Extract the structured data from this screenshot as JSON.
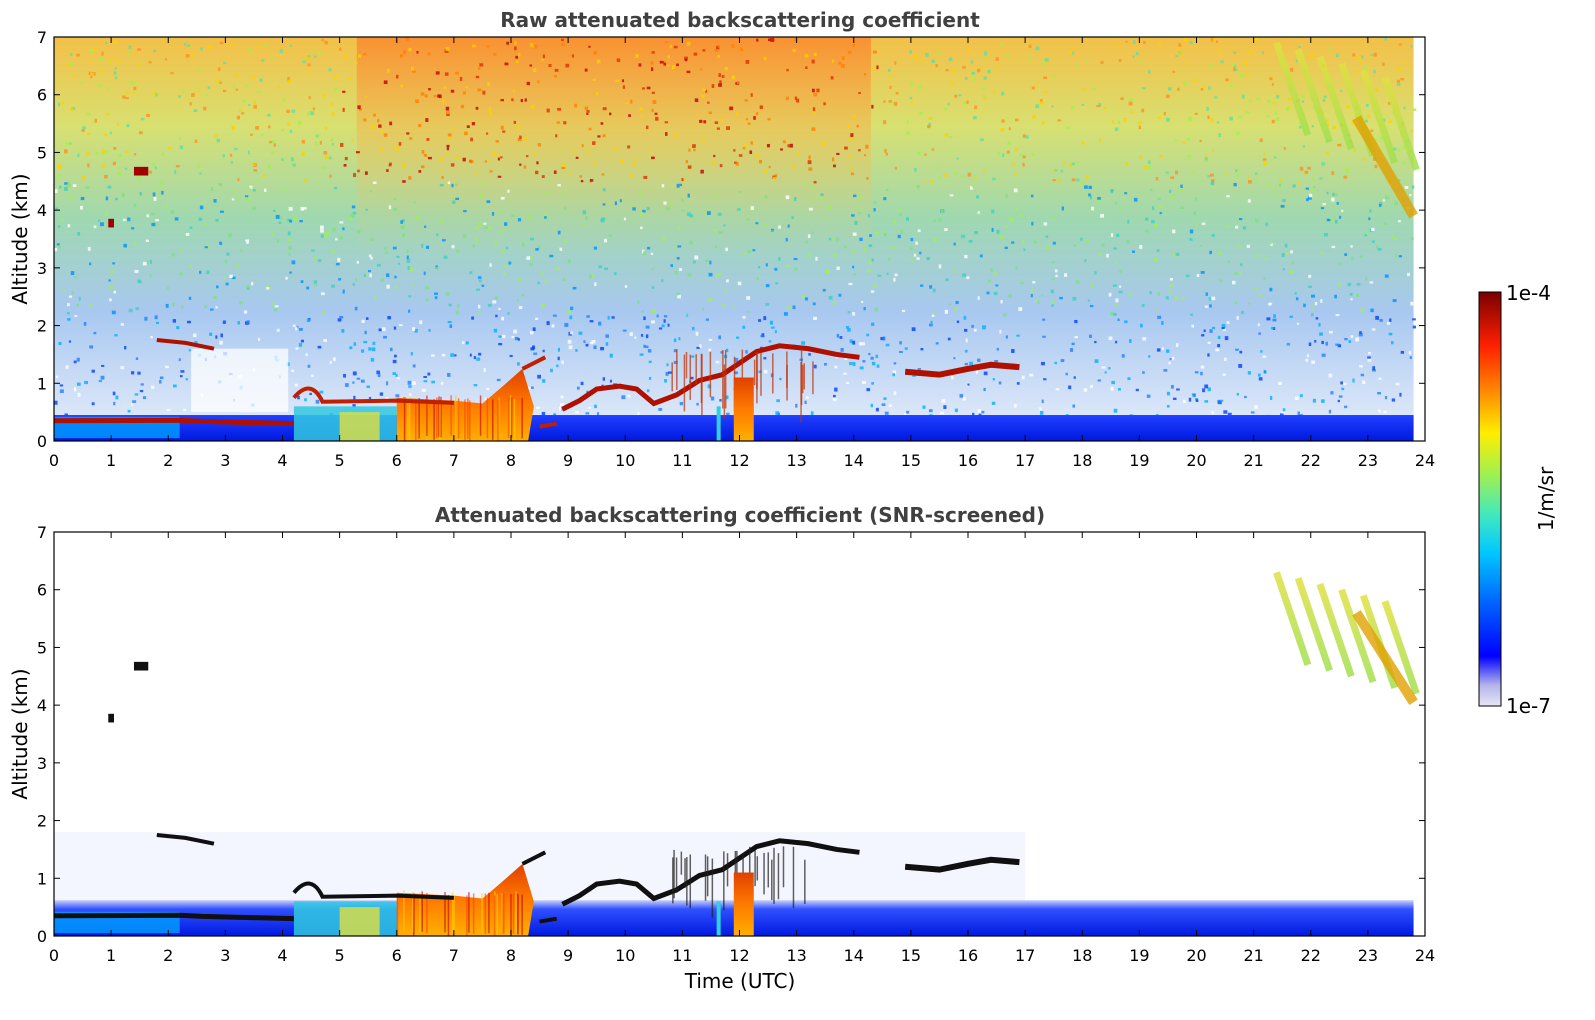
{
  "chart_data": [
    {
      "type": "heatmap",
      "title": "Raw attenuated backscattering coefficient",
      "xlabel": "",
      "ylabel": "Altitude (km)",
      "xlim": [
        0,
        24
      ],
      "ylim": [
        0,
        7
      ],
      "xticks": [
        "0",
        "1",
        "2",
        "3",
        "4",
        "5",
        "6",
        "7",
        "8",
        "9",
        "10",
        "11",
        "12",
        "13",
        "14",
        "15",
        "16",
        "17",
        "18",
        "19",
        "20",
        "21",
        "22",
        "23",
        "24"
      ],
      "yticks": [
        "0",
        "1",
        "2",
        "3",
        "4",
        "5",
        "6",
        "7"
      ],
      "data_extent_hours": [
        0,
        23.8
      ],
      "features": [
        {
          "name": "boundary layer",
          "x": [
            0,
            23.8
          ],
          "y": [
            0,
            0.45
          ]
        },
        {
          "name": "aerosol layer",
          "x": [
            2.2,
            4.2
          ],
          "y": [
            0.25,
            0.4
          ]
        },
        {
          "name": "cloud",
          "x": [
            4.2,
            8.6
          ],
          "y": [
            0,
            1.2
          ]
        },
        {
          "name": "cloud",
          "x": [
            8.8,
            14.2
          ],
          "y": [
            0.5,
            1.8
          ]
        },
        {
          "name": "cloud",
          "x": [
            14.8,
            17.0
          ],
          "y": [
            1.1,
            1.35
          ]
        },
        {
          "name": "cloud",
          "x": [
            1.0,
            1.7
          ],
          "y": [
            3.7,
            4.8
          ]
        },
        {
          "name": "cirrus",
          "x": [
            21.3,
            23.8
          ],
          "y": [
            3.8,
            7.0
          ]
        }
      ]
    },
    {
      "type": "heatmap",
      "title": "Attenuated backscattering coefficient (SNR-screened)",
      "xlabel": "Time (UTC)",
      "ylabel": "Altitude (km)",
      "xlim": [
        0,
        24
      ],
      "ylim": [
        0,
        7
      ],
      "xticks": [
        "0",
        "1",
        "2",
        "3",
        "4",
        "5",
        "6",
        "7",
        "8",
        "9",
        "10",
        "11",
        "12",
        "13",
        "14",
        "15",
        "16",
        "17",
        "18",
        "19",
        "20",
        "21",
        "22",
        "23",
        "24"
      ],
      "yticks": [
        "0",
        "1",
        "2",
        "3",
        "4",
        "5",
        "6",
        "7"
      ],
      "data_extent_hours": [
        0,
        23.8
      ],
      "features": [
        {
          "name": "boundary layer",
          "x": [
            0,
            23.8
          ],
          "y": [
            0,
            0.6
          ]
        },
        {
          "name": "cloud",
          "x": [
            4.2,
            8.6
          ],
          "y": [
            0,
            1.2
          ]
        },
        {
          "name": "cloud",
          "x": [
            8.8,
            14.2
          ],
          "y": [
            0.5,
            1.8
          ]
        },
        {
          "name": "cloud",
          "x": [
            14.8,
            17.0
          ],
          "y": [
            1.1,
            1.35
          ]
        },
        {
          "name": "cirrus",
          "x": [
            21.3,
            23.8
          ],
          "y": [
            4.0,
            6.4
          ]
        }
      ]
    }
  ],
  "colorbar": {
    "label": "1/m/sr",
    "max_label": "1e-4",
    "min_label": "1e-7",
    "scale": "log",
    "range": [
      1e-07,
      0.0001
    ],
    "colormap": [
      "#e6e6f5",
      "#b4b4ec",
      "#0000ff",
      "#0064ff",
      "#00c8ff",
      "#40e8c0",
      "#a0f050",
      "#ffee00",
      "#ff8000",
      "#ff2000",
      "#a00000",
      "#7a0000"
    ]
  }
}
